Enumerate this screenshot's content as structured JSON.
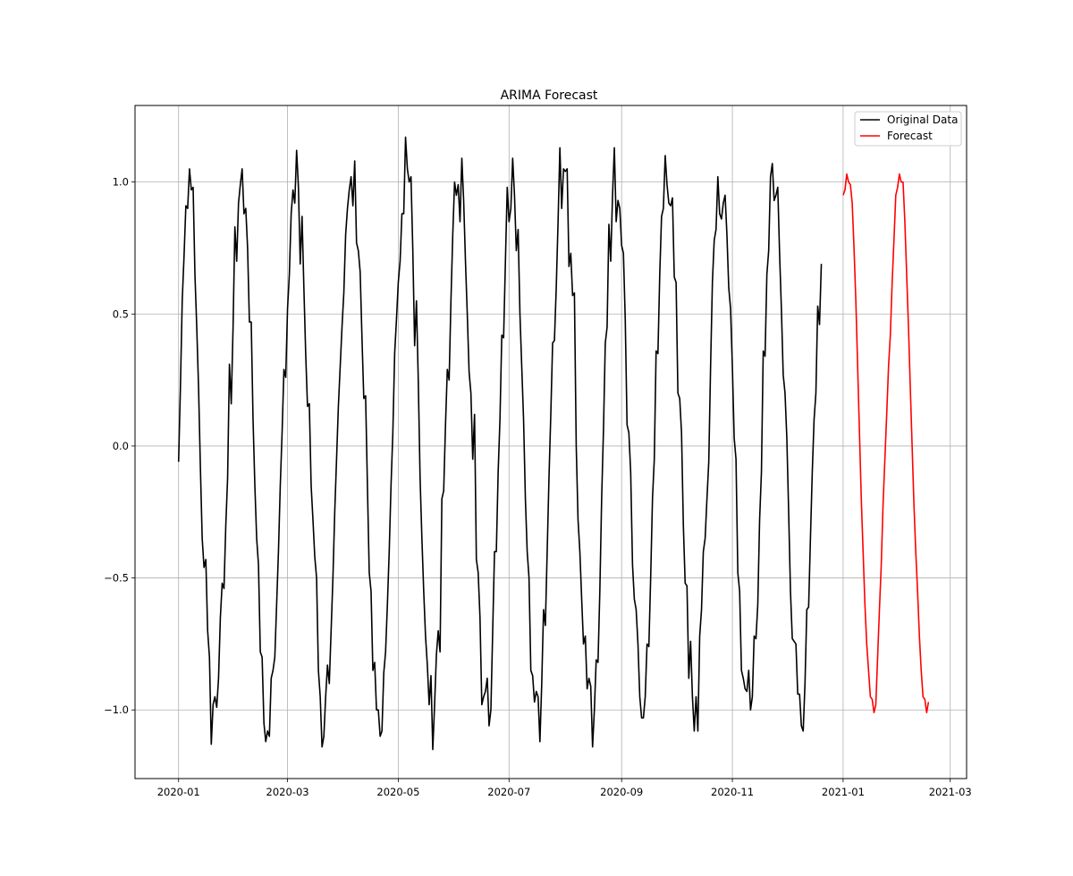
{
  "chart_data": {
    "type": "line",
    "title": "ARIMA Forecast",
    "xlabel": "",
    "ylabel": "",
    "x_scale": "date",
    "xlim": [
      "2019-12-08",
      "2021-03-10"
    ],
    "ylim": [
      -1.26,
      1.29
    ],
    "x_ticks": [
      {
        "date": "2020-01-01",
        "label": "2020-01"
      },
      {
        "date": "2020-03-01",
        "label": "2020-03"
      },
      {
        "date": "2020-05-01",
        "label": "2020-05"
      },
      {
        "date": "2020-07-01",
        "label": "2020-07"
      },
      {
        "date": "2020-09-01",
        "label": "2020-09"
      },
      {
        "date": "2020-11-01",
        "label": "2020-11"
      },
      {
        "date": "2021-01-01",
        "label": "2021-01"
      },
      {
        "date": "2021-03-01",
        "label": "2021-03"
      }
    ],
    "y_ticks": [
      {
        "value": 1.0,
        "label": "1.0"
      },
      {
        "value": 0.5,
        "label": "0.5"
      },
      {
        "value": 0.0,
        "label": "0.0"
      },
      {
        "value": -0.5,
        "label": "−0.5"
      },
      {
        "value": -1.0,
        "label": "−1.0"
      }
    ],
    "grid": true,
    "legend_position": "top-right",
    "series": [
      {
        "name": "Original Data",
        "color": "#000000",
        "start_date": "2020-01-01",
        "step_days": 1,
        "values": [
          -0.06,
          0.22,
          0.55,
          0.72,
          0.91,
          0.9,
          1.05,
          0.97,
          0.98,
          0.65,
          0.45,
          0.22,
          -0.08,
          -0.35,
          -0.46,
          -0.43,
          -0.7,
          -0.8,
          -1.13,
          -0.98,
          -0.95,
          -0.99,
          -0.88,
          -0.65,
          -0.52,
          -0.54,
          -0.3,
          -0.12,
          0.31,
          0.16,
          0.45,
          0.83,
          0.7,
          0.92,
          0.99,
          1.05,
          0.88,
          0.9,
          0.75,
          0.47,
          0.47,
          0.1,
          -0.15,
          -0.35,
          -0.45,
          -0.78,
          -0.8,
          -1.05,
          -1.12,
          -1.08,
          -1.1,
          -0.88,
          -0.85,
          -0.8,
          -0.6,
          -0.4,
          -0.15,
          0.05,
          0.29,
          0.26,
          0.52,
          0.65,
          0.88,
          0.97,
          0.92,
          1.12,
          0.98,
          0.69,
          0.87,
          0.6,
          0.35,
          0.15,
          0.16,
          -0.15,
          -0.28,
          -0.42,
          -0.5,
          -0.85,
          -0.95,
          -1.14,
          -1.1,
          -0.95,
          -0.83,
          -0.9,
          -0.7,
          -0.5,
          -0.25,
          -0.05,
          0.15,
          0.3,
          0.45,
          0.58,
          0.8,
          0.9,
          0.97,
          1.02,
          0.91,
          1.08,
          0.77,
          0.74,
          0.66,
          0.41,
          0.18,
          0.19,
          -0.15,
          -0.48,
          -0.55,
          -0.85,
          -0.82,
          -1.0,
          -1.0,
          -1.1,
          -1.08,
          -0.86,
          -0.78,
          -0.6,
          -0.4,
          -0.15,
          0.05,
          0.35,
          0.48,
          0.62,
          0.7,
          0.88,
          0.88,
          1.17,
          1.05,
          1.0,
          1.02,
          0.74,
          0.38,
          0.55,
          0.25,
          -0.12,
          -0.35,
          -0.55,
          -0.72,
          -0.83,
          -0.98,
          -0.87,
          -1.15,
          -0.98,
          -0.79,
          -0.7,
          -0.78,
          -0.2,
          -0.17,
          0.08,
          0.29,
          0.25,
          0.55,
          0.8,
          1.0,
          0.95,
          0.99,
          0.85,
          1.09,
          0.93,
          0.7,
          0.5,
          0.28,
          0.2,
          -0.05,
          0.12,
          -0.43,
          -0.48,
          -0.65,
          -0.98,
          -0.95,
          -0.93,
          -0.88,
          -1.06,
          -1.0,
          -0.7,
          -0.4,
          -0.4,
          -0.1,
          0.1,
          0.42,
          0.41,
          0.7,
          0.98,
          0.85,
          0.9,
          1.09,
          0.95,
          0.74,
          0.82,
          0.5,
          0.3,
          0.1,
          -0.2,
          -0.4,
          -0.5,
          -0.85,
          -0.87,
          -0.97,
          -0.93,
          -0.95,
          -1.12,
          -0.9,
          -0.62,
          -0.68,
          -0.4,
          -0.12,
          0.12,
          0.39,
          0.4,
          0.6,
          0.85,
          1.13,
          0.9,
          1.05,
          1.04,
          1.05,
          0.68,
          0.73,
          0.57,
          0.58,
          0.0,
          -0.28,
          -0.4,
          -0.58,
          -0.75,
          -0.72,
          -0.92,
          -0.88,
          -0.91,
          -1.14,
          -1.0,
          -0.81,
          -0.82,
          -0.55,
          -0.2,
          0.06,
          0.39,
          0.45,
          0.84,
          0.7,
          0.95,
          1.13,
          0.85,
          0.93,
          0.9,
          0.76,
          0.73,
          0.48,
          0.08,
          0.05,
          -0.1,
          -0.45,
          -0.58,
          -0.62,
          -0.75,
          -0.95,
          -1.03,
          -1.03,
          -0.95,
          -0.75,
          -0.76,
          -0.5,
          -0.2,
          -0.05,
          0.36,
          0.35,
          0.65,
          0.87,
          0.9,
          1.1,
          0.99,
          0.92,
          0.91,
          0.94,
          0.64,
          0.62,
          0.2,
          0.18,
          0.05,
          -0.3,
          -0.52,
          -0.53,
          -0.88,
          -0.74,
          -0.95,
          -1.08,
          -0.95,
          -1.08,
          -0.72,
          -0.62,
          -0.4,
          -0.35,
          -0.2,
          -0.06,
          0.3,
          0.62,
          0.78,
          0.82,
          1.02,
          0.88,
          0.86,
          0.92,
          0.95,
          0.8,
          0.6,
          0.52,
          0.3,
          0.03,
          -0.05,
          -0.48,
          -0.55,
          -0.85,
          -0.88,
          -0.92,
          -0.93,
          -0.85,
          -1.0,
          -0.95,
          -0.72,
          -0.73,
          -0.6,
          -0.28,
          -0.1,
          0.36,
          0.34,
          0.65,
          0.74,
          1.02,
          1.07,
          0.93,
          0.95,
          0.98,
          0.73,
          0.52,
          0.27,
          0.2,
          0.03,
          -0.25,
          -0.55,
          -0.73,
          -0.74,
          -0.75,
          -0.94,
          -0.94,
          -1.06,
          -1.08,
          -0.9,
          -0.62,
          -0.61,
          -0.35,
          -0.1,
          0.1,
          0.2,
          0.53,
          0.46,
          0.69
        ]
      },
      {
        "name": "Forecast",
        "color": "#ff0000",
        "start_date": "2021-01-01",
        "step_days": 1,
        "values": [
          0.95,
          0.97,
          1.03,
          1.0,
          0.99,
          0.92,
          0.75,
          0.55,
          0.3,
          0.05,
          -0.2,
          -0.4,
          -0.6,
          -0.75,
          -0.85,
          -0.95,
          -0.96,
          -1.01,
          -0.98,
          -0.8,
          -0.62,
          -0.45,
          -0.22,
          -0.05,
          0.12,
          0.3,
          0.42,
          0.62,
          0.78,
          0.95,
          0.98,
          1.03,
          1.0,
          1.0,
          0.85,
          0.65,
          0.45,
          0.22,
          0.0,
          -0.22,
          -0.4,
          -0.55,
          -0.72,
          -0.85,
          -0.95,
          -0.96,
          -1.01,
          -0.97
        ]
      }
    ]
  }
}
